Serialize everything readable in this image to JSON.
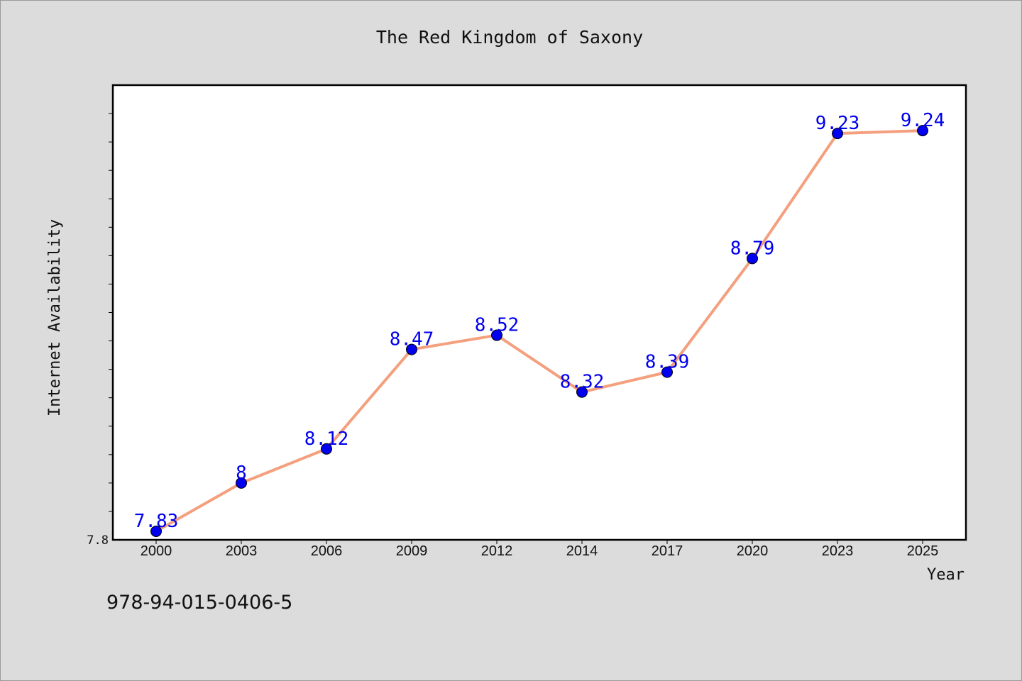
{
  "chart_data": {
    "type": "line",
    "title": "The Red Kingdom of Saxony",
    "xlabel": "Year",
    "ylabel": "Internet Availability",
    "categories": [
      "2000",
      "2003",
      "2006",
      "2009",
      "2012",
      "2014",
      "2017",
      "2020",
      "2023",
      "2025"
    ],
    "series": [
      {
        "values": [
          7.83,
          8,
          8.12,
          8.47,
          8.52,
          8.32,
          8.39,
          8.79,
          9.23,
          9.24
        ]
      }
    ],
    "data_labels": [
      "7.83",
      "8",
      "8.12",
      "8.47",
      "8.52",
      "8.32",
      "8.39",
      "8.79",
      "9.23",
      "9.24"
    ],
    "y_tick_labels": [
      "7.8"
    ],
    "ylim": [
      7.8,
      9.4
    ],
    "grid": false,
    "line_color": "#f4a07e",
    "marker_color": "#0000ee",
    "label_color": "#0000ee"
  },
  "footer": {
    "isbn": "978-94-015-0406-5"
  }
}
